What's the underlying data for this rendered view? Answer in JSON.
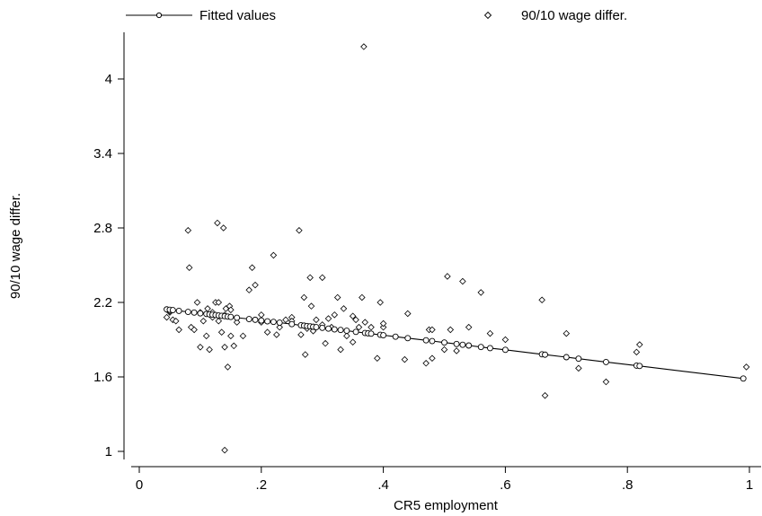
{
  "chart_data": {
    "type": "scatter",
    "title": "",
    "xlabel": "CR5 employment",
    "ylabel": "90/10 wage differ.",
    "xlim": [
      0,
      1
    ],
    "ylim": [
      1,
      4
    ],
    "x_ticks": [
      0,
      0.2,
      0.4,
      0.6,
      0.8,
      1
    ],
    "x_tick_labels": [
      "0",
      ".2",
      ".4",
      ".6",
      ".8",
      "1"
    ],
    "y_ticks": [
      1,
      1.6,
      2.2,
      2.8,
      3.4,
      4
    ],
    "y_tick_labels": [
      "1",
      "1.6",
      "2.2",
      "2.8",
      "3.4",
      "4"
    ],
    "grid": false,
    "legend": {
      "placement": "top",
      "entries": [
        {
          "label": "Fitted values",
          "marker": "circle-line"
        },
        {
          "label": "90/10 wage differ.",
          "marker": "diamond"
        }
      ]
    },
    "series": [
      {
        "name": "Fitted values",
        "type": "line",
        "marker": "circle",
        "x": [
          0.045,
          0.05,
          0.055,
          0.065,
          0.08,
          0.09,
          0.1,
          0.11,
          0.115,
          0.12,
          0.125,
          0.13,
          0.135,
          0.14,
          0.145,
          0.15,
          0.16,
          0.18,
          0.19,
          0.2,
          0.21,
          0.22,
          0.23,
          0.25,
          0.265,
          0.27,
          0.275,
          0.28,
          0.285,
          0.29,
          0.3,
          0.31,
          0.32,
          0.33,
          0.34,
          0.355,
          0.37,
          0.375,
          0.38,
          0.395,
          0.4,
          0.42,
          0.44,
          0.47,
          0.48,
          0.5,
          0.52,
          0.53,
          0.54,
          0.56,
          0.575,
          0.6,
          0.66,
          0.665,
          0.7,
          0.72,
          0.765,
          0.815,
          0.82,
          0.99
        ],
        "y": [
          2.144,
          2.141,
          2.138,
          2.132,
          2.124,
          2.118,
          2.112,
          2.107,
          2.104,
          2.101,
          2.098,
          2.095,
          2.092,
          2.089,
          2.086,
          2.083,
          2.077,
          2.066,
          2.06,
          2.054,
          2.048,
          2.043,
          2.037,
          2.025,
          2.016,
          2.013,
          2.01,
          2.007,
          2.004,
          2.001,
          1.995,
          1.989,
          1.983,
          1.978,
          1.972,
          1.963,
          1.954,
          1.951,
          1.948,
          1.939,
          1.936,
          1.924,
          1.912,
          1.895,
          1.889,
          1.877,
          1.865,
          1.859,
          1.853,
          1.841,
          1.832,
          1.818,
          1.782,
          1.779,
          1.759,
          1.747,
          1.72,
          1.691,
          1.688,
          1.587
        ]
      },
      {
        "name": "90/10 wage differ.",
        "type": "scatter",
        "marker": "diamond",
        "x": [
          0.045,
          0.05,
          0.055,
          0.06,
          0.065,
          0.08,
          0.082,
          0.085,
          0.09,
          0.095,
          0.1,
          0.105,
          0.11,
          0.112,
          0.115,
          0.12,
          0.125,
          0.128,
          0.13,
          0.135,
          0.138,
          0.14,
          0.142,
          0.145,
          0.148,
          0.15,
          0.155,
          0.16,
          0.17,
          0.18,
          0.185,
          0.19,
          0.2,
          0.21,
          0.22,
          0.225,
          0.23,
          0.24,
          0.25,
          0.262,
          0.265,
          0.27,
          0.272,
          0.275,
          0.28,
          0.282,
          0.285,
          0.29,
          0.3,
          0.305,
          0.31,
          0.315,
          0.32,
          0.325,
          0.33,
          0.335,
          0.34,
          0.35,
          0.355,
          0.36,
          0.365,
          0.368,
          0.37,
          0.38,
          0.39,
          0.395,
          0.4,
          0.435,
          0.44,
          0.47,
          0.475,
          0.48,
          0.5,
          0.505,
          0.51,
          0.52,
          0.53,
          0.54,
          0.56,
          0.575,
          0.6,
          0.66,
          0.665,
          0.7,
          0.72,
          0.765,
          0.815,
          0.82,
          0.995,
          0.05,
          0.1,
          0.12,
          0.13,
          0.14,
          0.15,
          0.2,
          0.25,
          0.3,
          0.35,
          0.4,
          0.48
        ],
        "y": [
          2.08,
          2.12,
          2.06,
          2.05,
          1.98,
          2.78,
          2.48,
          2.0,
          1.98,
          2.2,
          1.84,
          2.05,
          1.93,
          2.15,
          1.82,
          2.12,
          2.2,
          2.84,
          2.2,
          1.96,
          2.8,
          1.84,
          2.15,
          1.68,
          2.17,
          1.93,
          1.85,
          2.04,
          1.93,
          2.3,
          2.48,
          2.34,
          2.04,
          1.96,
          2.58,
          1.94,
          2.0,
          2.06,
          2.08,
          2.78,
          1.94,
          2.24,
          1.78,
          1.99,
          2.4,
          2.17,
          1.97,
          2.06,
          2.4,
          1.87,
          2.07,
          2.0,
          2.1,
          2.24,
          1.82,
          2.15,
          1.93,
          1.88,
          2.06,
          2.0,
          2.24,
          4.26,
          2.04,
          2.0,
          1.75,
          2.2,
          2.0,
          1.74,
          2.11,
          1.71,
          1.98,
          1.75,
          1.82,
          2.41,
          1.98,
          1.81,
          2.37,
          2.0,
          2.28,
          1.95,
          1.9,
          2.22,
          1.45,
          1.95,
          1.67,
          1.56,
          1.8,
          1.86,
          1.68,
          2.13,
          2.12,
          2.08,
          2.05,
          2.1,
          2.14,
          2.1,
          2.05,
          2.02,
          2.09,
          2.03,
          1.98
        ],
        "extra_points_x": [
          0.14
        ],
        "extra_points_y": [
          1.01
        ]
      }
    ]
  }
}
